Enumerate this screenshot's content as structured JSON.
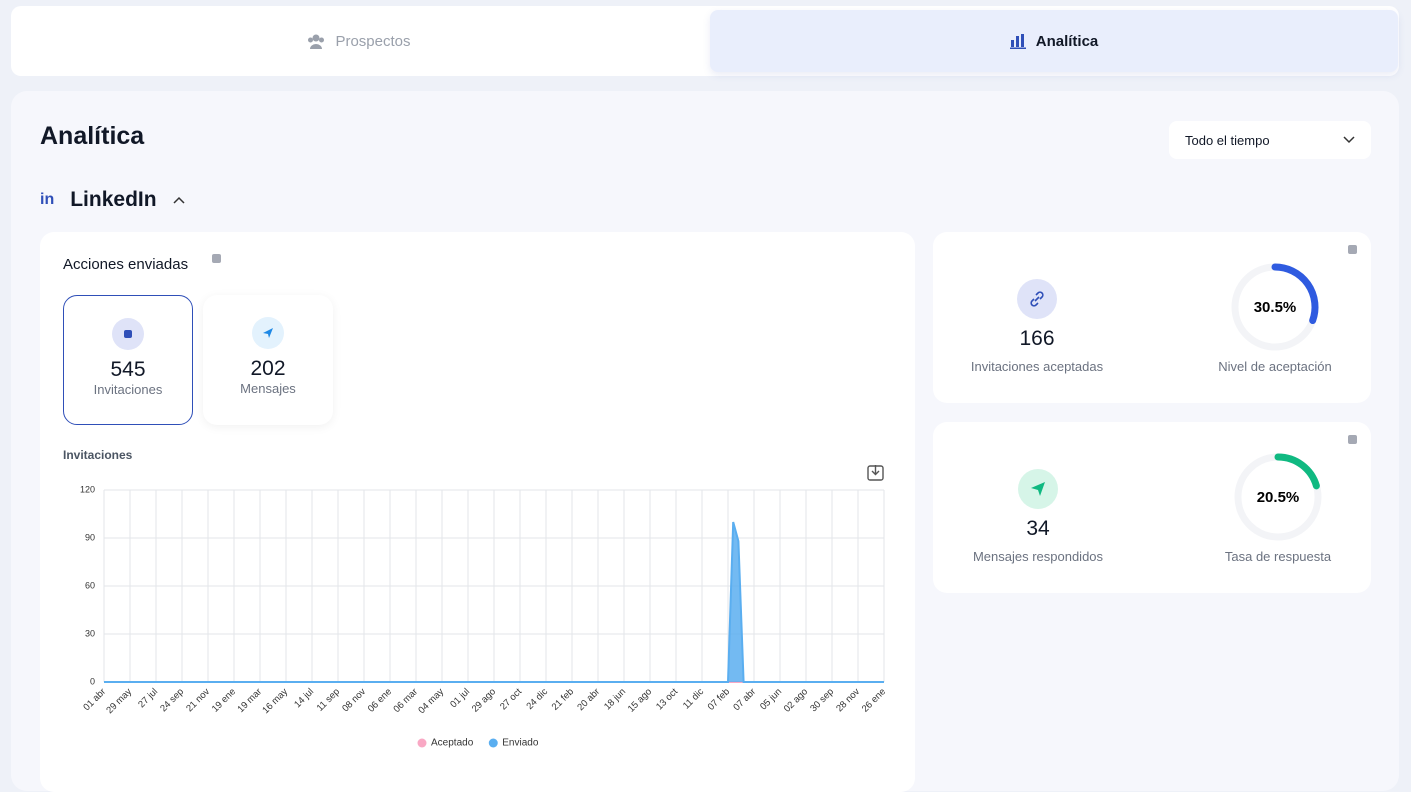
{
  "tabs": [
    {
      "label": "Prospectos"
    },
    {
      "label": "Analítica"
    }
  ],
  "header": {
    "title": "Analítica",
    "period": "Todo el tiempo"
  },
  "section": {
    "title": "LinkedIn"
  },
  "actions": {
    "title": "Acciones enviadas",
    "cards": [
      {
        "value": 545,
        "label": "Invitaciones"
      },
      {
        "value": 202,
        "label": "Mensajes"
      }
    ]
  },
  "kpis": [
    {
      "value": 166,
      "label": "Invitaciones aceptadas",
      "gauge": {
        "value": 30.5,
        "value_label": "30.5%",
        "label": "Nivel de aceptación",
        "color": "#2f5be0"
      }
    },
    {
      "value": 34,
      "label": "Mensajes respondidos",
      "gauge": {
        "value": 20.5,
        "value_label": "20.5%",
        "label": "Tasa de respuesta",
        "color": "#10b981"
      }
    }
  ],
  "chart_data": {
    "type": "area",
    "title": "Invitaciones",
    "categories": [
      "01 abr",
      null,
      null,
      null,
      null,
      "29 may",
      null,
      null,
      null,
      null,
      "27 jul",
      null,
      null,
      null,
      null,
      "24 sep",
      null,
      null,
      null,
      null,
      "21 nov",
      null,
      null,
      null,
      null,
      "19 ene",
      null,
      null,
      null,
      null,
      "19 mar",
      null,
      null,
      null,
      null,
      "16 may",
      null,
      null,
      null,
      null,
      "14 jul",
      null,
      null,
      null,
      null,
      "11 sep",
      null,
      null,
      null,
      null,
      "08 nov",
      null,
      null,
      null,
      null,
      "06 ene",
      null,
      null,
      null,
      null,
      "06 mar",
      null,
      null,
      null,
      null,
      "04 may",
      null,
      null,
      null,
      null,
      "01 jul",
      null,
      null,
      null,
      null,
      "29 ago",
      null,
      null,
      null,
      null,
      "27 oct",
      null,
      null,
      null,
      null,
      "24 dic",
      null,
      null,
      null,
      null,
      "21 feb",
      null,
      null,
      null,
      null,
      "20 abr",
      null,
      null,
      null,
      null,
      "18 jun",
      null,
      null,
      null,
      null,
      "15 ago",
      null,
      null,
      null,
      null,
      "13 oct",
      null,
      null,
      null,
      null,
      "11 dic",
      null,
      null,
      null,
      null,
      "07 feb",
      null,
      null,
      null,
      null,
      "07 abr",
      null,
      null,
      null,
      null,
      "05 jun",
      null,
      null,
      null,
      null,
      "02 ago",
      null,
      null,
      null,
      null,
      "30 sep",
      null,
      null,
      null,
      null,
      "28 nov",
      null,
      null,
      null,
      null,
      "26 ene"
    ],
    "series": [
      {
        "name": "Aceptado",
        "color": "#f9a8c4",
        "values": [
          0,
          0,
          0,
          0,
          0,
          0,
          0,
          0,
          0,
          0,
          0,
          0,
          0,
          0,
          0,
          0,
          0,
          0,
          0,
          0,
          0,
          0,
          0,
          0,
          0,
          0,
          0,
          0,
          0,
          0,
          0,
          0,
          0,
          0,
          0,
          0,
          0,
          0,
          0,
          0,
          0,
          0,
          0,
          0,
          0,
          0,
          0,
          0,
          0,
          0,
          0,
          0,
          0,
          0,
          0,
          0,
          0,
          0,
          0,
          0,
          0,
          0,
          0,
          0,
          0,
          0,
          0,
          0,
          0,
          0,
          0,
          0,
          0,
          0,
          0,
          0,
          0,
          0,
          0,
          0,
          0,
          0,
          0,
          0,
          0,
          0,
          0,
          0,
          0,
          0,
          0,
          0,
          0,
          0,
          0,
          0,
          0,
          0,
          0,
          0,
          0,
          0,
          0,
          0,
          0,
          0,
          0,
          0,
          0,
          0,
          0,
          0,
          0,
          0,
          0,
          0,
          0,
          0,
          0,
          0,
          0,
          0,
          0,
          0,
          0,
          0,
          0,
          0,
          0,
          0,
          0,
          0,
          0,
          0,
          0,
          0,
          0,
          0,
          0,
          0,
          0,
          0,
          0,
          0,
          0,
          0,
          0,
          0,
          0,
          0,
          0
        ]
      },
      {
        "name": "Enviado",
        "color": "#5aaef0",
        "values": [
          0,
          0,
          0,
          0,
          0,
          0,
          0,
          0,
          0,
          0,
          0,
          0,
          0,
          0,
          0,
          0,
          0,
          0,
          0,
          0,
          0,
          0,
          0,
          0,
          0,
          0,
          0,
          0,
          0,
          0,
          0,
          0,
          0,
          0,
          0,
          0,
          0,
          0,
          0,
          0,
          0,
          0,
          0,
          0,
          0,
          0,
          0,
          0,
          0,
          0,
          0,
          0,
          0,
          0,
          0,
          0,
          0,
          0,
          0,
          0,
          0,
          0,
          0,
          0,
          0,
          0,
          0,
          0,
          0,
          0,
          0,
          0,
          0,
          0,
          0,
          0,
          0,
          0,
          0,
          0,
          0,
          0,
          0,
          0,
          0,
          0,
          0,
          0,
          0,
          0,
          0,
          0,
          0,
          0,
          0,
          0,
          0,
          0,
          0,
          0,
          0,
          0,
          0,
          0,
          0,
          0,
          0,
          0,
          0,
          0,
          0,
          0,
          0,
          0,
          0,
          0,
          0,
          0,
          0,
          0,
          0,
          100,
          88,
          0,
          0,
          0,
          0,
          0,
          0,
          0,
          0,
          0,
          0,
          0,
          0,
          0,
          0,
          0,
          0,
          0,
          0,
          0,
          0,
          0,
          0,
          0,
          0,
          0,
          0,
          0,
          0
        ]
      }
    ],
    "ylim": [
      0,
      120
    ],
    "yticks": [
      0,
      30,
      60,
      90,
      120
    ],
    "grid": true
  }
}
